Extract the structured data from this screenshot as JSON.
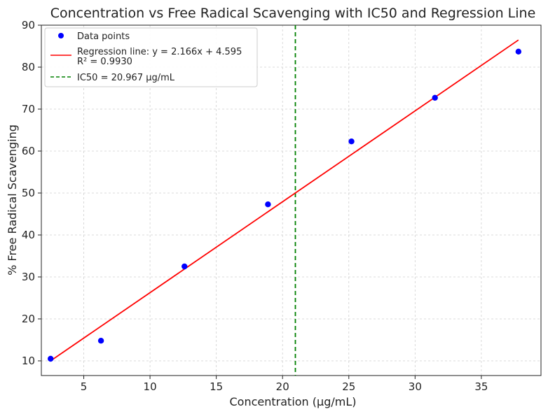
{
  "chart_data": {
    "type": "scatter",
    "title": "Concentration vs Free Radical Scavenging with IC50 and Regression Line",
    "xlabel": "Concentration (µg/mL)",
    "ylabel": "% Free Radical Scavenging",
    "xlim": [
      1.8,
      39.5
    ],
    "ylim": [
      6.5,
      90
    ],
    "xticks": [
      5,
      10,
      15,
      20,
      25,
      30,
      35
    ],
    "yticks": [
      10,
      20,
      30,
      40,
      50,
      60,
      70,
      80,
      90
    ],
    "grid": true,
    "legend_position": "top-left",
    "series": [
      {
        "name": "Data points",
        "kind": "scatter",
        "color": "#0000ff",
        "x": [
          2.5,
          6.3,
          12.6,
          18.9,
          25.2,
          31.5,
          37.8
        ],
        "y": [
          10.5,
          14.8,
          32.5,
          47.3,
          62.3,
          72.7,
          83.7
        ]
      },
      {
        "name": "Regression line: y = 2.166x + 4.595",
        "name_line2": "R² = 0.9930",
        "kind": "line",
        "color": "#ff0000",
        "slope": 2.166,
        "intercept": 4.595,
        "x_range": [
          2.5,
          37.8
        ]
      },
      {
        "name": "IC50 = 20.967 µg/mL",
        "kind": "vline",
        "color": "#008000",
        "x": 20.967,
        "dashed": true
      }
    ]
  }
}
